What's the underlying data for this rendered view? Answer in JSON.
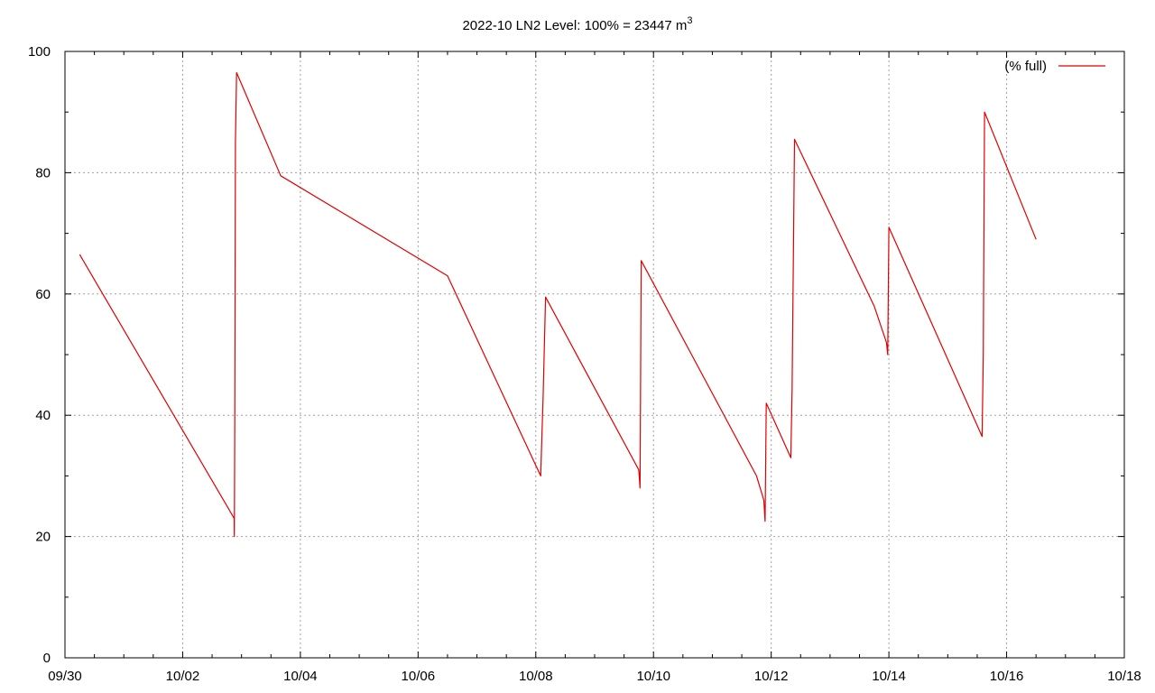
{
  "chart_data": {
    "type": "line",
    "title": "2022-10 LN2 Level: 100% = 23447 m",
    "title_superscript": "3",
    "xlabel": "",
    "ylabel": "",
    "xlim": [
      "09/30",
      "10/18"
    ],
    "ylim": [
      0,
      100
    ],
    "x_ticks": [
      "09/30",
      "10/02",
      "10/04",
      "10/06",
      "10/08",
      "10/10",
      "10/12",
      "10/14",
      "10/16",
      "10/18"
    ],
    "y_ticks": [
      0,
      20,
      40,
      60,
      80,
      100
    ],
    "grid": true,
    "legend_position": "top-right",
    "line_color": "#e00000",
    "series": [
      {
        "name": "(% full)",
        "points": [
          [
            "2022-09-30 06:00",
            66.5
          ],
          [
            "2022-10-02 21:00",
            23.0
          ],
          [
            "2022-10-02 21:05",
            20.0
          ],
          [
            "2022-10-02 21:15",
            39.0
          ],
          [
            "2022-10-02 21:30",
            85.0
          ],
          [
            "2022-10-02 22:00",
            96.5
          ],
          [
            "2022-10-03 16:00",
            79.5
          ],
          [
            "2022-10-06 12:00",
            63.0
          ],
          [
            "2022-10-08 02:00",
            30.0
          ],
          [
            "2022-10-08 03:00",
            43.0
          ],
          [
            "2022-10-08 04:00",
            59.5
          ],
          [
            "2022-10-09 18:00",
            31.0
          ],
          [
            "2022-10-09 18:30",
            28.0
          ],
          [
            "2022-10-09 19:00",
            65.5
          ],
          [
            "2022-10-11 18:00",
            30.0
          ],
          [
            "2022-10-11 21:00",
            26.0
          ],
          [
            "2022-10-11 21:30",
            22.5
          ],
          [
            "2022-10-11 22:00",
            42.0
          ],
          [
            "2022-10-12 08:00",
            33.0
          ],
          [
            "2022-10-12 08:30",
            44.0
          ],
          [
            "2022-10-12 09:30",
            85.5
          ],
          [
            "2022-10-13 18:00",
            58.0
          ],
          [
            "2022-10-13 23:00",
            52.0
          ],
          [
            "2022-10-13 23:30",
            50.0
          ],
          [
            "2022-10-14 00:00",
            71.0
          ],
          [
            "2022-10-15 14:00",
            36.5
          ],
          [
            "2022-10-15 14:30",
            50.0
          ],
          [
            "2022-10-15 15:00",
            90.0
          ],
          [
            "2022-10-16 12:00",
            69.0
          ]
        ]
      }
    ]
  }
}
